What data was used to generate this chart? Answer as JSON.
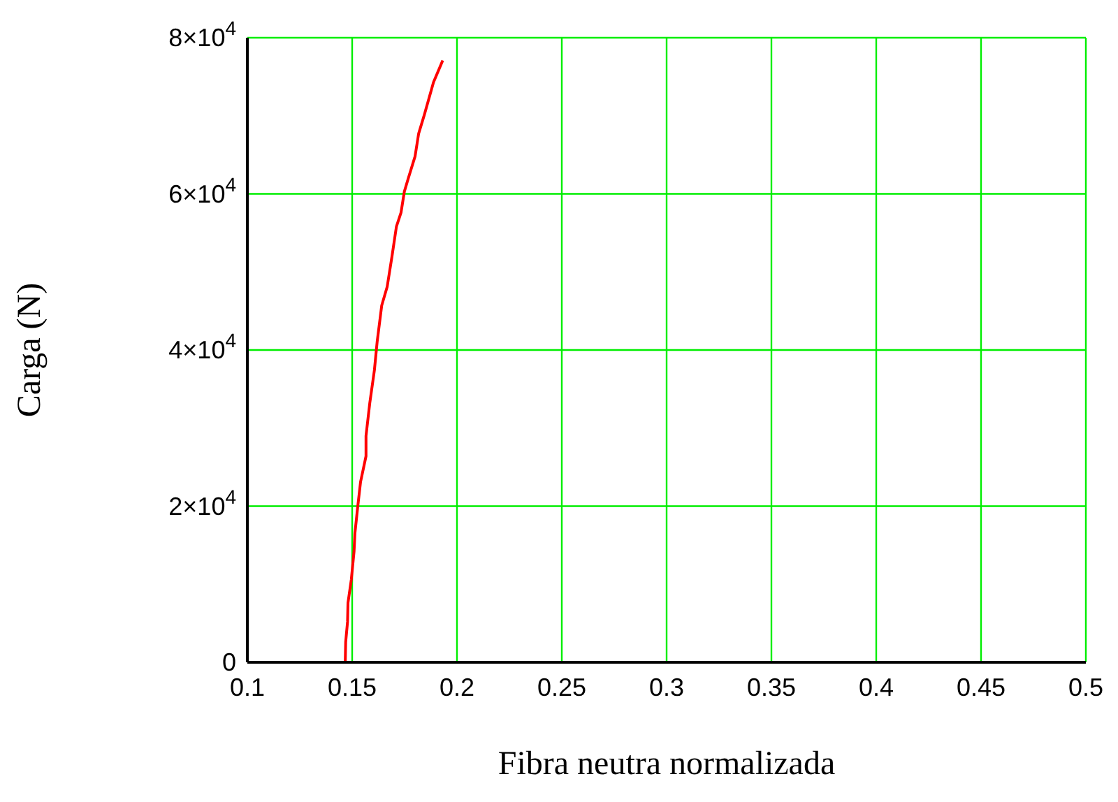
{
  "chart_data": {
    "type": "line",
    "xlabel": "Fibra neutra normalizada",
    "ylabel": "Carga (N)",
    "x": [
      0.1467,
      0.1469,
      0.1478,
      0.148,
      0.1496,
      0.1509,
      0.1513,
      0.1526,
      0.154,
      0.1566,
      0.1566,
      0.1584,
      0.1606,
      0.1619,
      0.1641,
      0.1667,
      0.169,
      0.1711,
      0.1733,
      0.1749,
      0.1769,
      0.18,
      0.1817,
      0.1844,
      0.1888,
      0.1932
    ],
    "series": [
      {
        "color": "#ff0000",
        "values": [
          0,
          2600,
          5200,
          7600,
          10600,
          14200,
          16500,
          19800,
          23100,
          26400,
          29000,
          33200,
          37400,
          41000,
          45700,
          48100,
          52000,
          55800,
          57600,
          60300,
          62100,
          64800,
          67700,
          70100,
          74300,
          77100
        ]
      }
    ],
    "xlim": [
      0.1,
      0.5
    ],
    "xticks": [
      0.1,
      0.15,
      0.2,
      0.25,
      0.3,
      0.35,
      0.4,
      0.45,
      0.5
    ],
    "ylim": [
      0,
      80000
    ],
    "yticks": [
      0,
      {
        "value": 20000,
        "label": "2×10$^{4}$"
      },
      {
        "value": 40000,
        "label": "4×10$^{4}$"
      },
      {
        "value": 60000,
        "label": "6×10$^{4}$"
      },
      {
        "value": 80000,
        "label": "8×10$^{4}$"
      }
    ],
    "grid": true,
    "marker": "none",
    "line_style": "solid",
    "legend": false
  }
}
